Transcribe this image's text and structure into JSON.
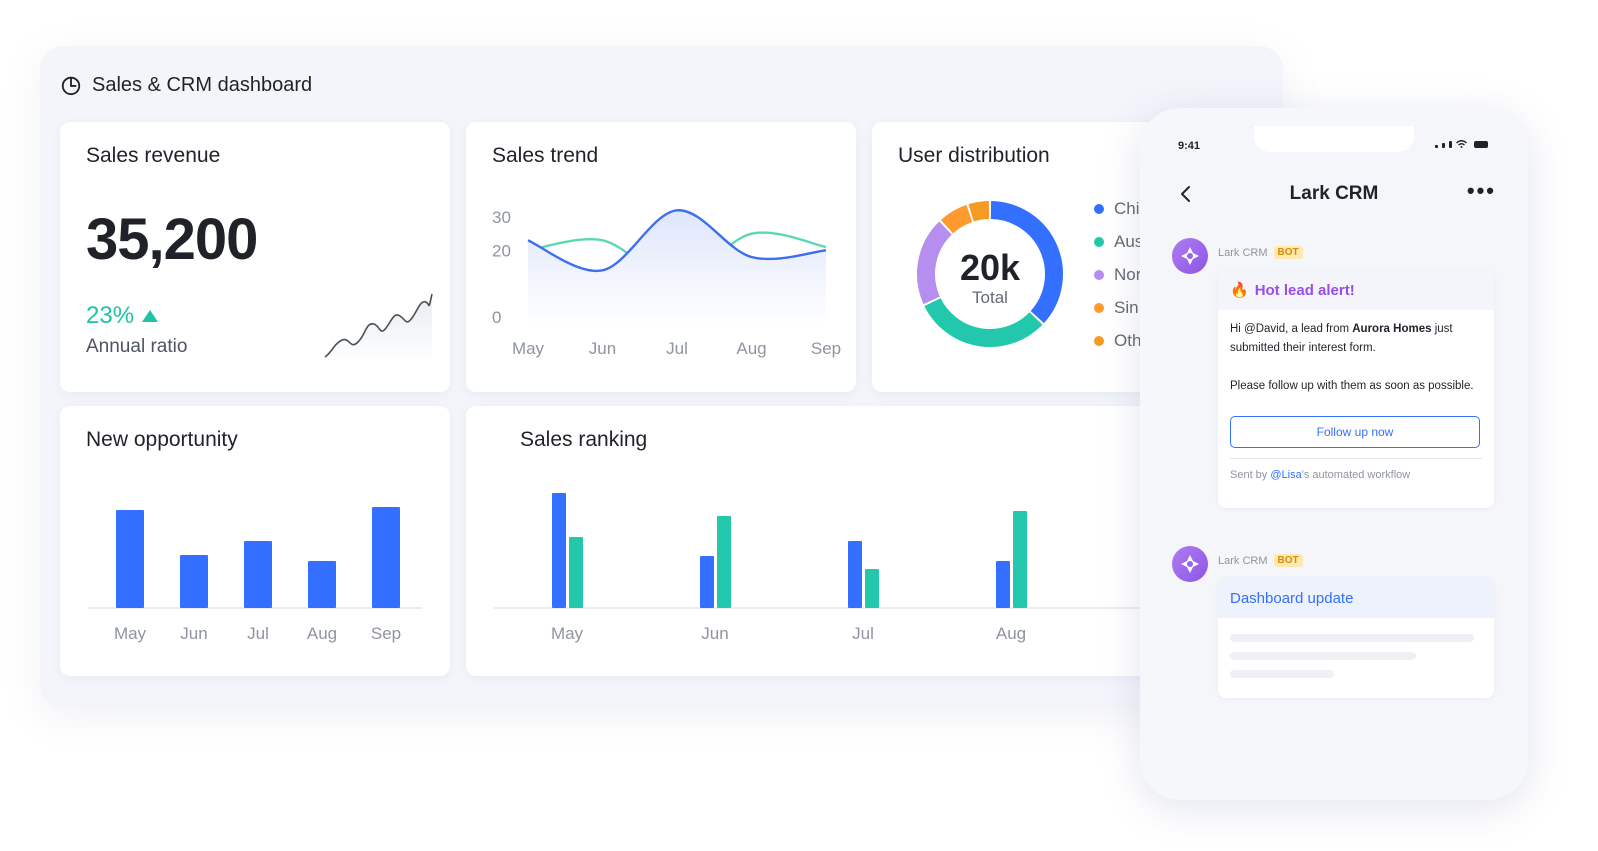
{
  "dashboard": {
    "title": "Sales & CRM dashboard"
  },
  "sales_revenue": {
    "title": "Sales revenue",
    "value": "35,200",
    "ratio": "23%",
    "ratio_label": "Annual ratio"
  },
  "sales_trend": {
    "title": "Sales trend",
    "chart_data": {
      "type": "line",
      "categories": [
        "May",
        "Jun",
        "Jul",
        "Aug",
        "Sep"
      ],
      "y_ticks": [
        "30",
        "20",
        "0"
      ],
      "series": [
        {
          "values": [
            20,
            23,
            11,
            25,
            21
          ]
        },
        {
          "values": [
            23,
            14,
            32,
            18,
            20
          ]
        }
      ],
      "colors": [
        "#5ed6b6",
        "#3e6ff0"
      ]
    }
  },
  "user_distribution": {
    "title": "User distribution",
    "center_value": "20k",
    "center_label": "Total",
    "chart_data": {
      "type": "pie",
      "slices": [
        {
          "label": "Chi",
          "value": 37,
          "color": "#3370ff"
        },
        {
          "label": "Aus",
          "value": 31,
          "color": "#23c8ac"
        },
        {
          "label": "Nor",
          "value": 20,
          "color": "#b58ef0"
        },
        {
          "label": "Sin",
          "value": 7,
          "color": "#ff9a2e"
        },
        {
          "label": "Oth",
          "value": 5,
          "color": "#f59a23"
        }
      ]
    }
  },
  "new_opportunity": {
    "title": "New opportunity",
    "chart_data": {
      "type": "bar",
      "categories": [
        "May",
        "Jun",
        "Jul",
        "Aug",
        "Sep"
      ],
      "values": [
        98,
        53,
        67,
        47,
        101
      ],
      "color": "#3370ff"
    }
  },
  "sales_ranking": {
    "title": "Sales ranking",
    "chart_data": {
      "type": "bar",
      "categories": [
        "May",
        "Jun",
        "Jul",
        "Aug"
      ],
      "series": [
        {
          "values": [
            115,
            52,
            67,
            47
          ],
          "color": "#3370ff"
        },
        {
          "values": [
            71,
            92,
            39,
            97
          ],
          "color": "#23c8ac"
        }
      ]
    }
  },
  "phone": {
    "time": "9:41",
    "title": "Lark CRM",
    "message1": {
      "sender": "Lark CRM",
      "badge": "BOT",
      "headline": "Hot lead alert!",
      "para1_prefix": "Hi @David, a lead from ",
      "para1_company": "Aurora Homes",
      "para1_suffix": " just submitted their interest form.",
      "para2": "Please follow up with them as soon as possible.",
      "button": "Follow up now",
      "footer_prefix": "Sent by ",
      "footer_user": "@Lisa",
      "footer_suffix": "'s automated workflow"
    },
    "message2": {
      "sender": "Lark CRM",
      "badge": "BOT",
      "headline": "Dashboard update"
    }
  }
}
